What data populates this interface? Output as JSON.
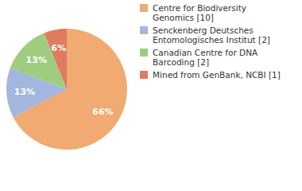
{
  "chart_data": {
    "type": "pie",
    "categories": [
      "Centre for Biodiversity Genomics [10]",
      "Senckenberg Deutsches Entomologisches Institut [2]",
      "Canadian Centre for DNA Barcoding [2]",
      "Mined from GenBank, NCBI [1]"
    ],
    "values": [
      66,
      13,
      13,
      6
    ],
    "value_labels": [
      "66%",
      "13%",
      "13%",
      "6%"
    ],
    "colors": [
      "#f0aa72",
      "#a3b6de",
      "#a0cc80",
      "#e07a60"
    ],
    "data_labels": true,
    "legend": "top-right"
  }
}
